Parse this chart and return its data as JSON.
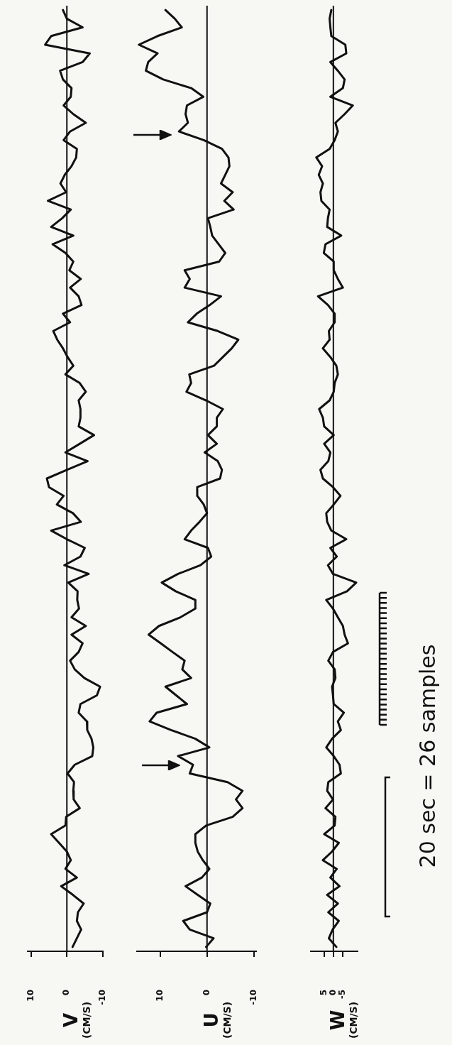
{
  "chart_data": [
    {
      "type": "line",
      "orientation": "horizontal",
      "ylabel": "V (CM/S)",
      "tick_labels": "x",
      "categories": [
        null,
        null,
        null,
        null,
        null,
        null,
        null,
        null,
        null,
        null,
        null,
        null,
        null,
        null,
        null,
        null,
        null,
        null,
        null,
        null,
        null,
        null,
        null,
        null,
        null,
        null,
        null,
        null,
        null,
        null,
        null,
        null,
        null,
        null,
        null,
        null,
        null,
        null,
        null,
        null,
        null,
        null,
        null,
        null,
        null,
        null,
        null,
        null,
        null,
        null,
        null,
        null,
        null,
        null,
        null,
        null,
        null,
        null,
        null,
        null,
        null,
        null,
        null,
        null,
        null,
        null,
        null,
        null,
        null,
        null,
        null,
        null,
        null,
        null,
        null,
        null,
        null,
        null,
        null,
        null,
        null,
        null,
        null,
        null,
        null,
        null,
        null,
        null,
        null,
        null,
        null,
        null,
        null,
        null,
        null,
        null,
        null,
        null,
        null,
        null,
        null,
        null,
        null,
        null,
        null,
        null,
        null,
        null,
        null
      ],
      "color": "#111111",
      "values": [
        1.1,
        0,
        -4.4,
        4.4,
        6.1,
        -6.4,
        -4.4,
        1.9,
        1.1,
        -1.3,
        -1.1,
        0.9,
        -1.8,
        -5.3,
        -0.9,
        0.9,
        -2.8,
        -2.6,
        -1.3,
        0.6,
        1.8,
        0.2,
        5.3,
        -1.1,
        1.3,
        4.4,
        -1.8,
        4,
        0.4,
        -1.8,
        -0.7,
        -3.9,
        -0.9,
        -3.3,
        -4.1,
        1.1,
        -0.9,
        3.8,
        2.7,
        1.1,
        -0.2,
        -1.8,
        0.4,
        -3.6,
        -5.3,
        -3.3,
        -3.8,
        -3.8,
        -3.3,
        -7.6,
        -3.6,
        0.4,
        -5.8,
        0,
        5.6,
        5,
        0.9,
        2.8,
        -1.7,
        -3.9,
        4.4,
        0,
        -5,
        -3.8,
        0.7,
        -6.1,
        -0.4,
        -3,
        -2.9,
        -3.4,
        -1.3,
        -5.3,
        -1.3,
        -4.4,
        -3.3,
        -0.9,
        -2.2,
        -4.9,
        -9.3,
        -8.4,
        -3.8,
        -3.3,
        -5.6,
        -5.7,
        -6.9,
        -7.4,
        -7.1,
        -2.2,
        -0.2,
        -2,
        -1.8,
        -1.9,
        -3.6,
        0.2,
        0.4,
        4.4,
        2.2,
        0,
        -1.1,
        0.4,
        -2.8,
        1.6,
        -1.7,
        -4.7,
        -3.1,
        -2.8,
        -4,
        -2.8,
        -1.6
      ],
      "xlim": [
        11,
        -10
      ],
      "xticks": [
        10,
        0,
        -10
      ],
      "ref_lines": [
        {
          "axis": "x",
          "value": 0
        }
      ]
    },
    {
      "type": "line",
      "orientation": "horizontal",
      "ylabel": "U (CM/S)",
      "tick_labels": "x",
      "categories": [
        null,
        null,
        null,
        null,
        null,
        null,
        null,
        null,
        null,
        null,
        null,
        null,
        null,
        null,
        null,
        null,
        null,
        null,
        null,
        null,
        null,
        null,
        null,
        null,
        null,
        null,
        null,
        null,
        null,
        null,
        null,
        null,
        null,
        null,
        null,
        null,
        null,
        null,
        null,
        null,
        null,
        null,
        null,
        null,
        null,
        null,
        null,
        null,
        null,
        null,
        null,
        null,
        null,
        null,
        null,
        null,
        null,
        null,
        null,
        null,
        null,
        null,
        null,
        null,
        null,
        null,
        null,
        null,
        null,
        null,
        null,
        null,
        null,
        null,
        null,
        null,
        null,
        null,
        null,
        null,
        null,
        null,
        null,
        null,
        null,
        null,
        null,
        null,
        null,
        null,
        null,
        null,
        null,
        null,
        null,
        null,
        null,
        null,
        null,
        null,
        null,
        null,
        null,
        null,
        null,
        null,
        null,
        null,
        null
      ],
      "color": "#111111",
      "values": [
        8.9,
        6.9,
        5.4,
        10.6,
        14.6,
        10.6,
        12.6,
        13.1,
        9.4,
        3.4,
        0.8,
        4.3,
        4.6,
        4.1,
        6,
        0.7,
        -3.2,
        -4.6,
        -4.8,
        -3.9,
        -3,
        -5.5,
        -3.7,
        -5.7,
        -0.2,
        -0.7,
        -1.1,
        -2.5,
        -3.9,
        -2.6,
        4.8,
        3.7,
        4.8,
        -3,
        -0.6,
        2.2,
        4.1,
        -2.3,
        -6.7,
        -5.3,
        -3.4,
        -1.5,
        3.8,
        3.4,
        4.4,
        0.2,
        -3.4,
        -2.1,
        -2.1,
        -0.2,
        -2.1,
        0.5,
        -2.3,
        -3.2,
        -2.8,
        2.1,
        2.1,
        0.7,
        0,
        1.6,
        3.4,
        4.8,
        -0.2,
        -0.9,
        1.4,
        6.2,
        9.7,
        6.7,
        2.5,
        2.5,
        5.7,
        10.3,
        12.5,
        9.9,
        7.4,
        4.8,
        5.3,
        3.4,
        8.9,
        6.6,
        4.3,
        10.8,
        12.3,
        7.7,
        2.5,
        -0.5,
        6.2,
        3,
        3.7,
        -4.4,
        -7.6,
        -6.2,
        -7.6,
        -5.5,
        0.2,
        2.5,
        2.5,
        2,
        0.9,
        -0.5,
        1.1,
        4.6,
        2,
        -0.7,
        0,
        5.1,
        3.7,
        -1.4,
        0.2
      ],
      "xlim": [
        15,
        -10.5
      ],
      "xticks": [
        10,
        0,
        -10
      ],
      "ref_lines": [
        {
          "axis": "x",
          "value": 0
        }
      ]
    },
    {
      "type": "line",
      "orientation": "horizontal",
      "ylabel": "W (CM/S)",
      "tick_labels": "x",
      "categories": [
        null,
        null,
        null,
        null,
        null,
        null,
        null,
        null,
        null,
        null,
        null,
        null,
        null,
        null,
        null,
        null,
        null,
        null,
        null,
        null,
        null,
        null,
        null,
        null,
        null,
        null,
        null,
        null,
        null,
        null,
        null,
        null,
        null,
        null,
        null,
        null,
        null,
        null,
        null,
        null,
        null,
        null,
        null,
        null,
        null,
        null,
        null,
        null,
        null,
        null,
        null,
        null,
        null,
        null,
        null,
        null,
        null,
        null,
        null,
        null,
        null,
        null,
        null,
        null,
        null,
        null,
        null,
        null,
        null,
        null,
        null,
        null,
        null,
        null,
        null,
        null,
        null,
        null,
        null,
        null,
        null,
        null,
        null,
        null,
        null,
        null,
        null,
        null,
        null,
        null,
        null,
        null,
        null,
        null,
        null,
        null,
        null,
        null,
        null,
        null,
        null,
        null,
        null,
        null,
        null,
        null,
        null,
        null,
        null
      ],
      "color": "#111111",
      "values": [
        1.1,
        2,
        1.6,
        1.1,
        -6.4,
        -6.9,
        1.6,
        -2.4,
        -6,
        -5.1,
        1.6,
        -10.4,
        -6,
        -1.1,
        -2.4,
        -0.7,
        2,
        9.1,
        6,
        7.8,
        5.6,
        6.9,
        6.4,
        2,
        2.9,
        3.3,
        -4.2,
        4.2,
        5.1,
        -0.2,
        -0.2,
        -2.4,
        -5.1,
        8.2,
        2.9,
        -0.7,
        -0.7,
        2.4,
        2,
        5.6,
        1.6,
        -1.6,
        -2.4,
        -0.7,
        -0.2,
        2,
        7.6,
        5.6,
        4.9,
        -0.2,
        4.9,
        1.6,
        2.7,
        6.9,
        5.6,
        0.2,
        -3.8,
        -0.2,
        3.8,
        3.3,
        1.1,
        -6.9,
        1.6,
        -1.8,
        2.9,
        0.2,
        -12.2,
        -7.3,
        3.8,
        0.2,
        -2.4,
        -5.1,
        -6,
        -7.8,
        0.2,
        2.7,
        -0.7,
        -1.1,
        0.7,
        0.2,
        -0.2,
        -5.6,
        -2.4,
        -4,
        0.7,
        3.8,
        -0.2,
        -3.3,
        -4,
        2.7,
        3.3,
        0.2,
        4.2,
        -1.1,
        -0.7,
        4.9,
        -2.9,
        0.7,
        5.6,
        -1.8,
        1.6,
        -3.3,
        3.3,
        -2.4,
        2.7,
        -2.9,
        0.4,
        2.4,
        -1.6
      ],
      "xlim": [
        12,
        -13
      ],
      "xticks": [
        5,
        0,
        -5
      ],
      "ref_lines": [
        {
          "axis": "x",
          "value": 0
        }
      ],
      "annotations": [
        "20 sec = 26 samples"
      ]
    }
  ]
}
